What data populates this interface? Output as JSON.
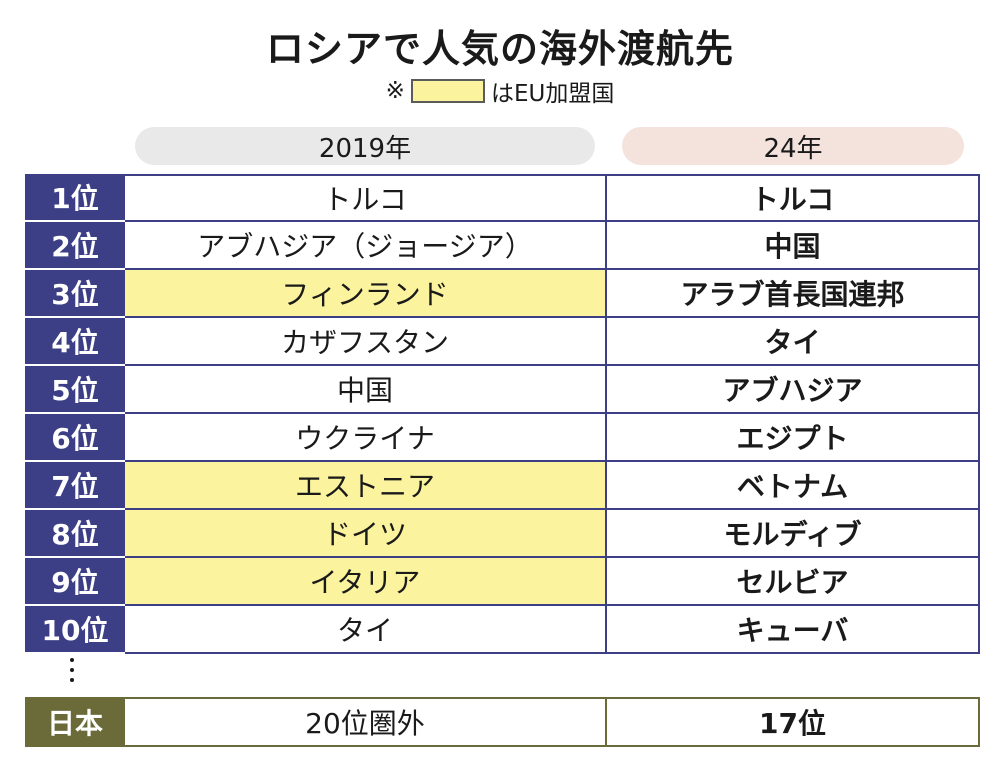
{
  "title": "ロシアで人気の海外渡航先",
  "note": {
    "mark": "※",
    "text": "はEU加盟国",
    "swatch_color": "#fbf39d"
  },
  "years": {
    "y2019": "2019年",
    "y2024": "24年"
  },
  "rows": [
    {
      "rank": "1位",
      "c2019": "トルコ",
      "eu": false,
      "c2024": "トルコ"
    },
    {
      "rank": "2位",
      "c2019": "アブハジア（ジョージア）",
      "eu": false,
      "c2024": "中国"
    },
    {
      "rank": "3位",
      "c2019": "フィンランド",
      "eu": true,
      "c2024": "アラブ首長国連邦"
    },
    {
      "rank": "4位",
      "c2019": "カザフスタン",
      "eu": false,
      "c2024": "タイ"
    },
    {
      "rank": "5位",
      "c2019": "中国",
      "eu": false,
      "c2024": "アブハジア"
    },
    {
      "rank": "6位",
      "c2019": "ウクライナ",
      "eu": false,
      "c2024": "エジプト"
    },
    {
      "rank": "7位",
      "c2019": "エストニア",
      "eu": true,
      "c2024": "ベトナム"
    },
    {
      "rank": "8位",
      "c2019": "ドイツ",
      "eu": true,
      "c2024": "モルディブ"
    },
    {
      "rank": "9位",
      "c2019": "イタリア",
      "eu": true,
      "c2024": "セルビア"
    },
    {
      "rank": "10位",
      "c2019": "タイ",
      "eu": false,
      "c2024": "キューバ"
    }
  ],
  "japan": {
    "label": "日本",
    "c2019": "20位圏外",
    "c2024": "17位"
  },
  "colors": {
    "rank_bg": "#3d3f86",
    "eu_highlight": "#fbf39d",
    "japan_bg": "#6b6b3a"
  }
}
